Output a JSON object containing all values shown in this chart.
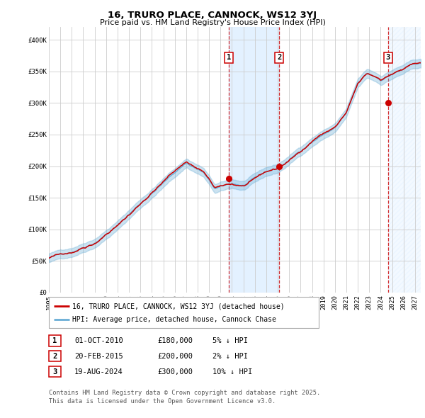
{
  "title_line1": "16, TRURO PLACE, CANNOCK, WS12 3YJ",
  "title_line2": "Price paid vs. HM Land Registry's House Price Index (HPI)",
  "ylim": [
    0,
    420000
  ],
  "xlim_start": 1995.0,
  "xlim_end": 2027.5,
  "yticks": [
    0,
    50000,
    100000,
    150000,
    200000,
    250000,
    300000,
    350000,
    400000
  ],
  "ytick_labels": [
    "£0",
    "£50K",
    "£100K",
    "£150K",
    "£200K",
    "£250K",
    "£300K",
    "£350K",
    "£400K"
  ],
  "xticks": [
    1995,
    1996,
    1997,
    1998,
    1999,
    2000,
    2001,
    2002,
    2003,
    2004,
    2005,
    2006,
    2007,
    2008,
    2009,
    2010,
    2011,
    2012,
    2013,
    2014,
    2015,
    2016,
    2017,
    2018,
    2019,
    2020,
    2021,
    2022,
    2023,
    2024,
    2025,
    2026,
    2027
  ],
  "sale1_x": 2010.75,
  "sale1_y": 180000,
  "sale1_label": "1",
  "sale1_date": "01-OCT-2010",
  "sale1_price": "£180,000",
  "sale1_hpi": "5% ↓ HPI",
  "sale2_x": 2015.12,
  "sale2_y": 200000,
  "sale2_label": "2",
  "sale2_date": "20-FEB-2015",
  "sale2_price": "£200,000",
  "sale2_hpi": "2% ↓ HPI",
  "sale3_x": 2024.63,
  "sale3_y": 300000,
  "sale3_label": "3",
  "sale3_date": "19-AUG-2024",
  "sale3_price": "£300,000",
  "sale3_hpi": "10% ↓ HPI",
  "hpi_color": "#6aaed6",
  "price_color": "#cc0000",
  "shade_color": "#ddeeff",
  "legend_line1": "16, TRURO PLACE, CANNOCK, WS12 3YJ (detached house)",
  "legend_line2": "HPI: Average price, detached house, Cannock Chase",
  "footnote1": "Contains HM Land Registry data © Crown copyright and database right 2025.",
  "footnote2": "This data is licensed under the Open Government Licence v3.0.",
  "background_color": "#ffffff",
  "grid_color": "#cccccc"
}
